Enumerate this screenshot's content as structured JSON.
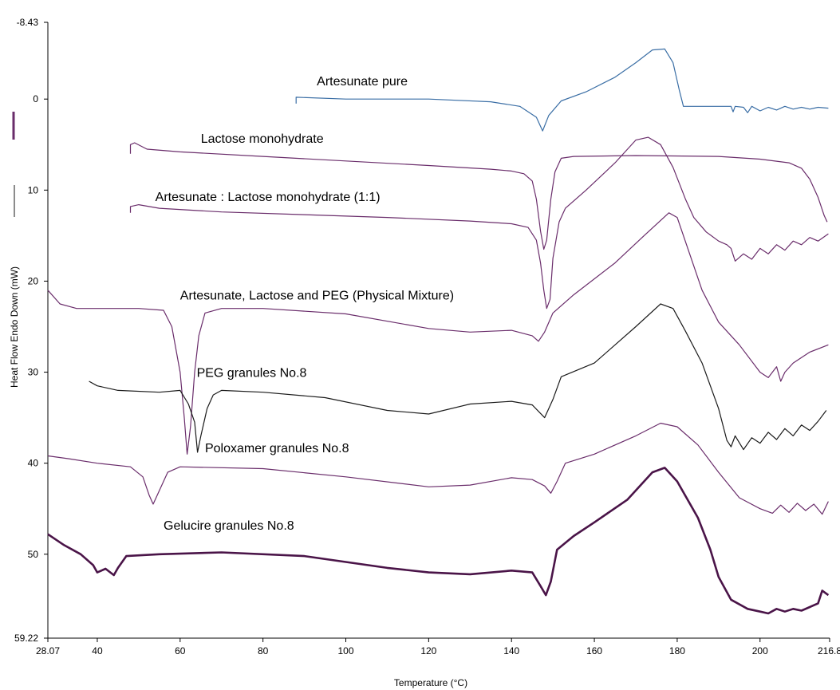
{
  "chart_data": {
    "type": "line",
    "xlabel": "Temperature (°C)",
    "ylabel": "Heat Flow Endo Down (mW)",
    "xlim": [
      28.07,
      216.8
    ],
    "ylim": [
      -8.43,
      59.22
    ],
    "y_inverted": true,
    "grid": false,
    "x_ticks": [
      {
        "value": 28.07,
        "label": "28.07"
      },
      {
        "value": 40,
        "label": "40"
      },
      {
        "value": 60,
        "label": "60"
      },
      {
        "value": 80,
        "label": "80"
      },
      {
        "value": 100,
        "label": "100"
      },
      {
        "value": 120,
        "label": "120"
      },
      {
        "value": 140,
        "label": "140"
      },
      {
        "value": 160,
        "label": "160"
      },
      {
        "value": 180,
        "label": "180"
      },
      {
        "value": 200,
        "label": "200"
      },
      {
        "value": 216.8,
        "label": "216.8"
      }
    ],
    "y_ticks": [
      {
        "value": -8.43,
        "label": "-8.43"
      },
      {
        "value": 0,
        "label": "0"
      },
      {
        "value": 10,
        "label": "10"
      },
      {
        "value": 20,
        "label": "20"
      },
      {
        "value": 30,
        "label": "30"
      },
      {
        "value": 40,
        "label": "40"
      },
      {
        "value": 50,
        "label": "50"
      },
      {
        "value": 59.22,
        "label": "59.22"
      }
    ],
    "series": [
      {
        "name": "Artesunate pure",
        "color": "#3a6ea5",
        "width": 1.2,
        "points": [
          [
            88,
            0.5
          ],
          [
            88,
            -0.2
          ],
          [
            100,
            0
          ],
          [
            120,
            0
          ],
          [
            135,
            0.3
          ],
          [
            142,
            0.8
          ],
          [
            146,
            2.0
          ],
          [
            147.5,
            3.5
          ],
          [
            149,
            1.8
          ],
          [
            152,
            0.2
          ],
          [
            158,
            -0.8
          ],
          [
            165,
            -2.4
          ],
          [
            170,
            -4.0
          ],
          [
            174,
            -5.4
          ],
          [
            177,
            -5.5
          ],
          [
            179,
            -4.0
          ],
          [
            180.5,
            -1.0
          ],
          [
            181.5,
            0.8
          ],
          [
            186,
            0.8
          ],
          [
            193,
            0.8
          ],
          [
            193.5,
            1.4
          ],
          [
            194,
            0.8
          ],
          [
            196,
            0.9
          ],
          [
            197,
            1.5
          ],
          [
            198,
            0.8
          ],
          [
            200,
            1.3
          ],
          [
            202,
            0.9
          ],
          [
            204,
            1.2
          ],
          [
            206,
            0.8
          ],
          [
            208,
            1.1
          ],
          [
            210,
            0.9
          ],
          [
            212,
            1.1
          ],
          [
            214,
            0.9
          ],
          [
            216.5,
            1.0
          ]
        ]
      },
      {
        "name": "Lactose monohydrate",
        "color": "#6a2d6b",
        "width": 1.2,
        "points": [
          [
            48,
            6.0
          ],
          [
            48,
            5.0
          ],
          [
            49,
            4.8
          ],
          [
            52,
            5.5
          ],
          [
            60,
            5.8
          ],
          [
            80,
            6.3
          ],
          [
            100,
            6.8
          ],
          [
            120,
            7.3
          ],
          [
            135,
            7.7
          ],
          [
            140,
            7.9
          ],
          [
            143,
            8.2
          ],
          [
            145,
            9.0
          ],
          [
            146,
            11.0
          ],
          [
            147,
            14.5
          ],
          [
            147.8,
            16.5
          ],
          [
            148.5,
            15.5
          ],
          [
            149.5,
            11.0
          ],
          [
            150.5,
            8.0
          ],
          [
            152,
            6.5
          ],
          [
            155,
            6.3
          ],
          [
            170,
            6.2
          ],
          [
            190,
            6.3
          ],
          [
            200,
            6.6
          ],
          [
            207,
            7.0
          ],
          [
            210,
            7.6
          ],
          [
            212,
            8.8
          ],
          [
            214,
            10.8
          ],
          [
            215.5,
            12.8
          ],
          [
            216.2,
            13.5
          ]
        ]
      },
      {
        "name": "Artesunate : Lactose monohydrate (1:1)",
        "color": "#6a2d6b",
        "width": 1.2,
        "points": [
          [
            48,
            12.5
          ],
          [
            48,
            11.8
          ],
          [
            50,
            11.6
          ],
          [
            55,
            12.0
          ],
          [
            70,
            12.4
          ],
          [
            90,
            12.7
          ],
          [
            110,
            13.0
          ],
          [
            130,
            13.4
          ],
          [
            140,
            13.7
          ],
          [
            144,
            14.1
          ],
          [
            146,
            15.5
          ],
          [
            147,
            18.0
          ],
          [
            147.8,
            21.0
          ],
          [
            148.5,
            23.0
          ],
          [
            149.3,
            22.0
          ],
          [
            150,
            17.5
          ],
          [
            151.5,
            13.5
          ],
          [
            153,
            12.0
          ],
          [
            158,
            10.0
          ],
          [
            165,
            7.0
          ],
          [
            170,
            4.5
          ],
          [
            173,
            4.2
          ],
          [
            176,
            5.0
          ],
          [
            179,
            7.5
          ],
          [
            182,
            11.0
          ],
          [
            184,
            13.0
          ],
          [
            187,
            14.6
          ],
          [
            190,
            15.6
          ],
          [
            192,
            16.0
          ],
          [
            193,
            16.4
          ],
          [
            194,
            17.8
          ],
          [
            196,
            17.0
          ],
          [
            198,
            17.6
          ],
          [
            200,
            16.4
          ],
          [
            202,
            17.0
          ],
          [
            204,
            16.0
          ],
          [
            206,
            16.6
          ],
          [
            208,
            15.6
          ],
          [
            210,
            16.0
          ],
          [
            212,
            15.2
          ],
          [
            214,
            15.6
          ],
          [
            216.5,
            14.8
          ]
        ]
      },
      {
        "name": "Artesunate, Lactose and PEG (Physical Mixture)",
        "color": "#6a2d6b",
        "width": 1.2,
        "points": [
          [
            28.07,
            21.0
          ],
          [
            31,
            22.5
          ],
          [
            35,
            23.0
          ],
          [
            50,
            23.0
          ],
          [
            56,
            23.2
          ],
          [
            58,
            25.0
          ],
          [
            60,
            30.0
          ],
          [
            61,
            35.0
          ],
          [
            61.7,
            39.0
          ],
          [
            62.5,
            36.0
          ],
          [
            63.5,
            30.0
          ],
          [
            64.5,
            26.0
          ],
          [
            66,
            23.5
          ],
          [
            70,
            23.0
          ],
          [
            80,
            23.0
          ],
          [
            100,
            23.6
          ],
          [
            120,
            25.2
          ],
          [
            130,
            25.6
          ],
          [
            140,
            25.4
          ],
          [
            145,
            26.0
          ],
          [
            146.5,
            26.6
          ],
          [
            148,
            25.6
          ],
          [
            150,
            23.5
          ],
          [
            155,
            21.5
          ],
          [
            165,
            18.0
          ],
          [
            172,
            15.0
          ],
          [
            178,
            12.5
          ],
          [
            180,
            13.0
          ],
          [
            183,
            17.0
          ],
          [
            186,
            21.0
          ],
          [
            190,
            24.5
          ],
          [
            195,
            27.0
          ],
          [
            200,
            30.0
          ],
          [
            202,
            30.6
          ],
          [
            204,
            29.4
          ],
          [
            205,
            31.0
          ],
          [
            206,
            30.0
          ],
          [
            208,
            29.0
          ],
          [
            212,
            27.8
          ],
          [
            216.5,
            27.0
          ]
        ]
      },
      {
        "name": "PEG granules No.8",
        "color": "#1a1a1a",
        "width": 1.2,
        "points": [
          [
            38,
            31.0
          ],
          [
            40,
            31.5
          ],
          [
            45,
            32.0
          ],
          [
            55,
            32.2
          ],
          [
            60,
            32.0
          ],
          [
            62,
            33.5
          ],
          [
            63.5,
            35.5
          ],
          [
            64.2,
            38.8
          ],
          [
            65,
            37.0
          ],
          [
            66.5,
            34.0
          ],
          [
            68,
            32.5
          ],
          [
            70,
            32.0
          ],
          [
            80,
            32.2
          ],
          [
            95,
            32.8
          ],
          [
            110,
            34.2
          ],
          [
            120,
            34.6
          ],
          [
            130,
            33.5
          ],
          [
            140,
            33.2
          ],
          [
            145,
            33.6
          ],
          [
            148,
            35.0
          ],
          [
            150,
            33.0
          ],
          [
            152,
            30.5
          ],
          [
            160,
            29.0
          ],
          [
            170,
            25.0
          ],
          [
            176,
            22.5
          ],
          [
            179,
            23.0
          ],
          [
            182,
            25.5
          ],
          [
            186,
            29.0
          ],
          [
            190,
            34.0
          ],
          [
            192,
            37.5
          ],
          [
            193,
            38.2
          ],
          [
            194,
            37.0
          ],
          [
            196,
            38.5
          ],
          [
            198,
            37.2
          ],
          [
            200,
            37.8
          ],
          [
            202,
            36.6
          ],
          [
            204,
            37.4
          ],
          [
            206,
            36.2
          ],
          [
            208,
            37.0
          ],
          [
            210,
            35.8
          ],
          [
            212,
            36.4
          ],
          [
            214,
            35.4
          ],
          [
            216,
            34.2
          ]
        ]
      },
      {
        "name": "Poloxamer granules No.8",
        "color": "#6a2d6b",
        "width": 1.2,
        "points": [
          [
            28.07,
            39.2
          ],
          [
            33,
            39.5
          ],
          [
            40,
            40.0
          ],
          [
            48,
            40.4
          ],
          [
            51,
            41.5
          ],
          [
            52.5,
            43.5
          ],
          [
            53.5,
            44.5
          ],
          [
            55,
            43.0
          ],
          [
            57,
            41.0
          ],
          [
            60,
            40.4
          ],
          [
            80,
            40.6
          ],
          [
            100,
            41.5
          ],
          [
            120,
            42.6
          ],
          [
            130,
            42.4
          ],
          [
            140,
            41.6
          ],
          [
            145,
            41.8
          ],
          [
            148,
            42.5
          ],
          [
            149.5,
            43.3
          ],
          [
            151,
            42.0
          ],
          [
            153,
            40.0
          ],
          [
            160,
            39.0
          ],
          [
            170,
            37.0
          ],
          [
            176,
            35.6
          ],
          [
            180,
            36.0
          ],
          [
            185,
            38.0
          ],
          [
            190,
            41.0
          ],
          [
            195,
            43.8
          ],
          [
            200,
            45.0
          ],
          [
            203,
            45.5
          ],
          [
            205,
            44.6
          ],
          [
            207,
            45.4
          ],
          [
            209,
            44.4
          ],
          [
            211,
            45.2
          ],
          [
            213,
            44.5
          ],
          [
            215,
            45.6
          ],
          [
            216.5,
            44.2
          ]
        ]
      },
      {
        "name": "Gelucire granules No.8",
        "color": "#4a1448",
        "width": 2.6,
        "points": [
          [
            28.07,
            47.8
          ],
          [
            32,
            49.0
          ],
          [
            36,
            50.0
          ],
          [
            39,
            51.2
          ],
          [
            40,
            52.0
          ],
          [
            42,
            51.6
          ],
          [
            44,
            52.3
          ],
          [
            45,
            51.5
          ],
          [
            47,
            50.2
          ],
          [
            55,
            50.0
          ],
          [
            70,
            49.8
          ],
          [
            90,
            50.2
          ],
          [
            110,
            51.5
          ],
          [
            120,
            52.0
          ],
          [
            130,
            52.2
          ],
          [
            140,
            51.8
          ],
          [
            145,
            52.0
          ],
          [
            147,
            53.5
          ],
          [
            148.3,
            54.5
          ],
          [
            149.5,
            53.0
          ],
          [
            151,
            49.5
          ],
          [
            155,
            48.0
          ],
          [
            160,
            46.5
          ],
          [
            168,
            44.0
          ],
          [
            174,
            41.0
          ],
          [
            177,
            40.5
          ],
          [
            180,
            42.0
          ],
          [
            185,
            46.0
          ],
          [
            188,
            49.5
          ],
          [
            190,
            52.5
          ],
          [
            193,
            55.0
          ],
          [
            197,
            56.0
          ],
          [
            200,
            56.3
          ],
          [
            202,
            56.5
          ],
          [
            204,
            56.0
          ],
          [
            206,
            56.3
          ],
          [
            208,
            56.0
          ],
          [
            210,
            56.2
          ],
          [
            212,
            55.8
          ],
          [
            214,
            55.4
          ],
          [
            215,
            54.0
          ],
          [
            216.5,
            54.5
          ]
        ]
      }
    ],
    "labels": [
      {
        "text": "Artesunate pure",
        "x": 93,
        "y": -1.5
      },
      {
        "text": "Lactose monohydrate",
        "x": 65,
        "y": 4.8
      },
      {
        "text": "Artesunate : Lactose monohydrate (1:1)",
        "x": 54,
        "y": 11.2
      },
      {
        "text": "Artesunate, Lactose and PEG (Physical Mixture)",
        "x": 60,
        "y": 22.0
      },
      {
        "text": "PEG granules No.8",
        "x": 64,
        "y": 30.5
      },
      {
        "text": "Poloxamer granules No.8",
        "x": 66,
        "y": 38.8
      },
      {
        "text": "Gelucire granules No.8",
        "x": 56,
        "y": 47.3
      }
    ],
    "left_legend_marks": [
      {
        "color": "#6a2d6b"
      },
      {
        "color": "#1a1a1a"
      }
    ]
  }
}
